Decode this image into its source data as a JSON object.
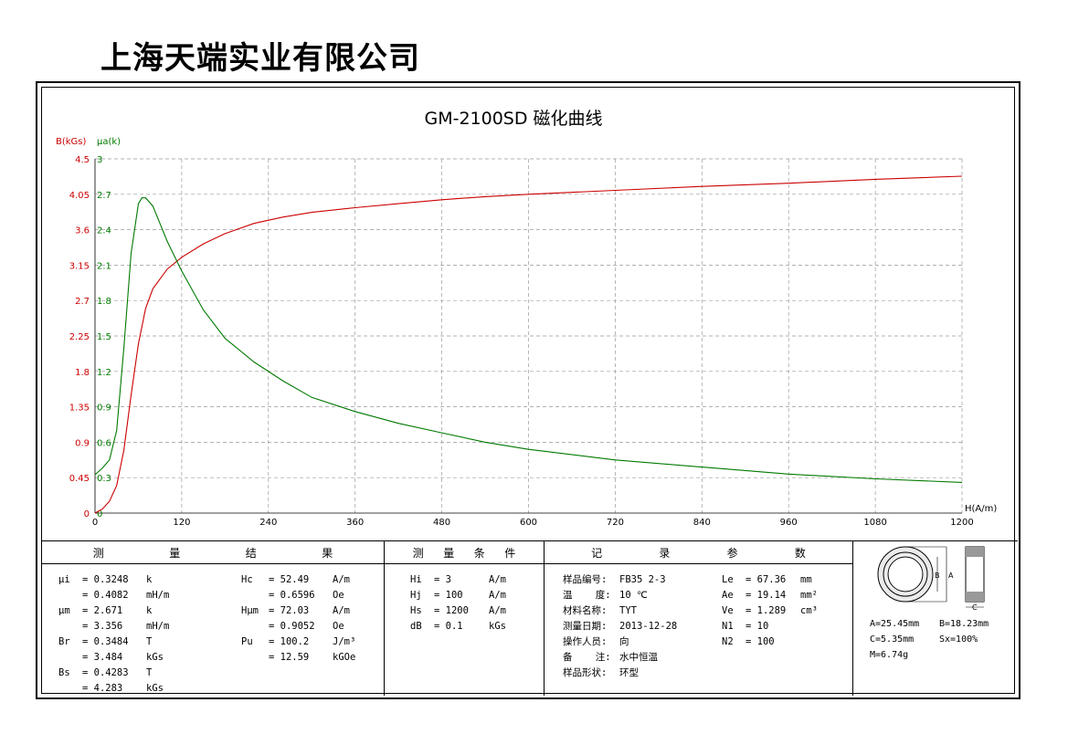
{
  "header": {
    "company": "上海天端实业有限公司"
  },
  "chart_data": {
    "type": "line",
    "title": "GM-2100SD 磁化曲线",
    "ylabel_left": "B(kGs)",
    "ylabel_right": "μa(k)",
    "xlabel": "H(A/m)",
    "xlim": [
      0,
      1200
    ],
    "ylim_left": [
      0,
      4.5
    ],
    "ylim_right": [
      0,
      3
    ],
    "x_ticks": [
      "0",
      "120",
      "240",
      "360",
      "480",
      "600",
      "720",
      "840",
      "960",
      "1080",
      "1200"
    ],
    "y_left_ticks": [
      "0",
      "0.45",
      "0.9",
      "1.35",
      "1.8",
      "2.25",
      "2.7",
      "3.15",
      "3.6",
      "4.05",
      "4.5"
    ],
    "y_right_ticks": [
      "0",
      "0.3",
      "0.6",
      "0.9",
      "1.2",
      "1.5",
      "1.8",
      "2.1",
      "2.4",
      "2.7",
      "3"
    ],
    "grid": true,
    "series": [
      {
        "name": "B",
        "axis": "left",
        "color": "#cc0000",
        "x": [
          0,
          10,
          20,
          30,
          40,
          50,
          60,
          70,
          80,
          100,
          120,
          150,
          180,
          220,
          260,
          300,
          360,
          420,
          480,
          540,
          600,
          720,
          840,
          960,
          1080,
          1200
        ],
        "y": [
          0,
          0.05,
          0.15,
          0.35,
          0.8,
          1.5,
          2.15,
          2.6,
          2.85,
          3.1,
          3.25,
          3.42,
          3.55,
          3.68,
          3.76,
          3.82,
          3.88,
          3.93,
          3.98,
          4.02,
          4.05,
          4.1,
          4.15,
          4.19,
          4.24,
          4.28
        ]
      },
      {
        "name": "μa",
        "axis": "right",
        "color": "#007a00",
        "x": [
          0,
          10,
          20,
          30,
          40,
          50,
          60,
          65,
          70,
          80,
          90,
          100,
          120,
          150,
          180,
          220,
          260,
          300,
          360,
          420,
          480,
          540,
          600,
          720,
          840,
          960,
          1080,
          1200
        ],
        "y": [
          0.3248,
          0.38,
          0.45,
          0.7,
          1.4,
          2.2,
          2.62,
          2.67,
          2.67,
          2.6,
          2.45,
          2.3,
          2.05,
          1.72,
          1.48,
          1.28,
          1.12,
          0.98,
          0.86,
          0.76,
          0.68,
          0.6,
          0.54,
          0.45,
          0.39,
          0.33,
          0.29,
          0.26
        ]
      }
    ]
  },
  "results": {
    "heading": [
      "测",
      "量",
      "结",
      "果"
    ],
    "left_rows": [
      [
        "μi",
        "= 0.3248",
        "k"
      ],
      [
        "",
        "= 0.4082",
        "mH/m"
      ],
      [
        "μm",
        "= 2.671",
        "k"
      ],
      [
        "",
        "= 3.356",
        "mH/m"
      ],
      [
        "Br",
        "= 0.3484",
        "T"
      ],
      [
        "",
        "= 3.484",
        "kGs"
      ],
      [
        "Bs",
        "= 0.4283",
        "T"
      ],
      [
        "",
        "= 4.283",
        "kGs"
      ]
    ],
    "right_rows": [
      [
        "Hc",
        "= 52.49",
        "A/m"
      ],
      [
        "",
        "= 0.6596",
        "Oe"
      ],
      [
        "Hμm",
        "= 72.03",
        "A/m"
      ],
      [
        "",
        "= 0.9052",
        "Oe"
      ],
      [
        "Pu",
        "= 100.2",
        "J/m³"
      ],
      [
        "",
        "= 12.59",
        "kGOe"
      ]
    ]
  },
  "conditions": {
    "heading": [
      "测",
      "量",
      "条",
      "件"
    ],
    "rows": [
      [
        "Hi",
        "= 3",
        "A/m"
      ],
      [
        "Hj",
        "= 100",
        "A/m"
      ],
      [
        "Hs",
        "= 1200",
        "A/m"
      ],
      [
        "dB",
        "= 0.1",
        "kGs"
      ]
    ]
  },
  "params": {
    "heading": [
      "记",
      "录",
      "参",
      "数"
    ],
    "left_rows": [
      [
        "样品编号:",
        "FB35 2-3"
      ],
      [
        "温    度:",
        "10 ℃"
      ],
      [
        "材料名称:",
        "TYT"
      ],
      [
        "测量日期:",
        "2013-12-28"
      ],
      [
        "操作人员:",
        "向"
      ],
      [
        "备    注:",
        "水中恒温"
      ],
      [
        "样品形状:",
        "环型"
      ]
    ],
    "right_rows": [
      [
        "Le",
        "= 67.36",
        "mm"
      ],
      [
        "Ae",
        "= 19.14",
        "mm²"
      ],
      [
        "Ve",
        "= 1.289",
        "cm³"
      ],
      [
        "N1",
        "= 10",
        ""
      ],
      [
        "N2",
        "= 100",
        ""
      ]
    ]
  },
  "sample": {
    "diagram_labels": {
      "a": "A",
      "b": "B",
      "c": "C"
    },
    "dims": [
      "A=25.45mm",
      "B=18.23mm",
      "C=5.35mm",
      "Sx=100%",
      "M=6.74g"
    ]
  }
}
